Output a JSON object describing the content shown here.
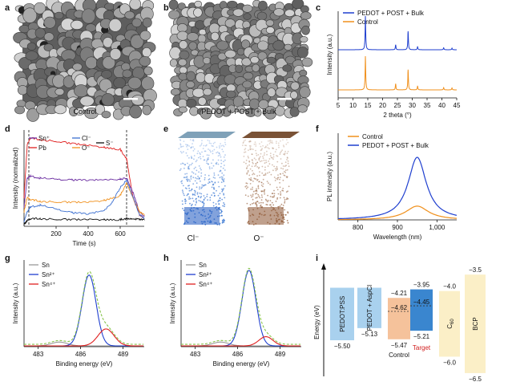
{
  "panels": {
    "a": {
      "label": "a",
      "caption": "Control"
    },
    "b": {
      "label": "b",
      "caption": "PEDOT + POST + Bulk"
    },
    "c": {
      "label": "c"
    },
    "d": {
      "label": "d"
    },
    "e": {
      "label": "e",
      "left_caption": "Cl⁻",
      "right_caption": "O⁻"
    },
    "f": {
      "label": "f"
    },
    "g": {
      "label": "g"
    },
    "h": {
      "label": "h"
    },
    "i": {
      "label": "i"
    }
  },
  "colors": {
    "blue": "#1f3fcf",
    "orange": "#f0901c",
    "purple": "#6a2ca0",
    "red": "#e02020",
    "green": "#86c34a",
    "gray": "#999999"
  },
  "chart_data": [
    {
      "panel": "c",
      "type": "line",
      "xlabel": "2 theta (°)",
      "ylabel": "Intensity (a.u.)",
      "xlim": [
        5,
        45
      ],
      "xticks": [
        5,
        10,
        15,
        20,
        25,
        30,
        35,
        40,
        45
      ],
      "series": [
        {
          "name": "PEDOT + POST + Bulk",
          "color": "#1f3fcf",
          "peaks": [
            [
              14.2,
              1.0
            ],
            [
              24.4,
              0.15
            ],
            [
              28.6,
              0.55
            ],
            [
              31.8,
              0.1
            ],
            [
              40.6,
              0.06
            ],
            [
              43.4,
              0.05
            ]
          ]
        },
        {
          "name": "Control",
          "color": "#f0901c",
          "peaks": [
            [
              14.2,
              1.0
            ],
            [
              24.4,
              0.18
            ],
            [
              28.6,
              0.6
            ],
            [
              31.8,
              0.12
            ],
            [
              40.6,
              0.07
            ],
            [
              43.4,
              0.06
            ]
          ]
        }
      ],
      "legend": "top-left"
    },
    {
      "panel": "d",
      "type": "line",
      "xlabel": "Time (s)",
      "ylabel": "Intensity (normalized)",
      "xlim": [
        0,
        750
      ],
      "xticks": [
        200,
        400,
        600
      ],
      "dashed_lines_x": [
        30,
        640
      ],
      "legend_entries": [
        "Sn⁺",
        "Pb",
        "Cl⁻",
        "O⁻",
        "S⁻"
      ],
      "series": [
        {
          "name": "Pb",
          "color": "#e02020",
          "x": [
            0,
            20,
            40,
            100,
            200,
            300,
            400,
            500,
            600,
            640,
            680,
            720,
            750
          ],
          "y": [
            0.3,
            0.85,
            0.92,
            0.9,
            0.88,
            0.86,
            0.84,
            0.82,
            0.8,
            0.7,
            0.3,
            0.12,
            0.08
          ]
        },
        {
          "name": "Sn⁺",
          "color": "#6a2ca0",
          "x": [
            0,
            20,
            40,
            100,
            200,
            300,
            400,
            500,
            600,
            640,
            680,
            720,
            750
          ],
          "y": [
            0.2,
            0.5,
            0.52,
            0.5,
            0.49,
            0.48,
            0.48,
            0.48,
            0.49,
            0.5,
            0.35,
            0.15,
            0.1
          ]
        },
        {
          "name": "O⁻",
          "color": "#f0901c",
          "x": [
            0,
            20,
            40,
            100,
            200,
            300,
            400,
            500,
            600,
            640,
            680,
            720,
            750
          ],
          "y": [
            0.15,
            0.3,
            0.28,
            0.26,
            0.25,
            0.25,
            0.25,
            0.27,
            0.32,
            0.45,
            0.3,
            0.15,
            0.12
          ]
        },
        {
          "name": "Cl⁻",
          "color": "#3b6fd0",
          "x": [
            0,
            20,
            40,
            100,
            200,
            300,
            400,
            500,
            550,
            600,
            640,
            680,
            720,
            750
          ],
          "y": [
            0.05,
            0.15,
            0.2,
            0.22,
            0.18,
            0.14,
            0.13,
            0.16,
            0.25,
            0.4,
            0.48,
            0.3,
            0.12,
            0.08
          ]
        },
        {
          "name": "S⁻",
          "color": "#111111",
          "x": [
            0,
            20,
            40,
            100,
            200,
            300,
            400,
            500,
            600,
            640,
            680,
            720,
            750
          ],
          "y": [
            0.02,
            0.06,
            0.08,
            0.08,
            0.07,
            0.07,
            0.07,
            0.07,
            0.07,
            0.08,
            0.08,
            0.07,
            0.07
          ]
        }
      ]
    },
    {
      "panel": "f",
      "type": "line",
      "xlabel": "Wavelength (nm)",
      "ylabel": "PL intensity (a.u.)",
      "xlim": [
        750,
        1050
      ],
      "xticks": [
        800,
        900,
        1000
      ],
      "xtick_labels": [
        "800",
        "900",
        "1,000"
      ],
      "series": [
        {
          "name": "Control",
          "color": "#f0901c",
          "center": 950,
          "width": 35,
          "height": 0.22
        },
        {
          "name": "PEDOT + POST + Bulk",
          "color": "#1f3fcf",
          "center": 950,
          "width": 28,
          "height": 1.0
        }
      ],
      "legend": "top"
    },
    {
      "panel": "g",
      "type": "line",
      "xlabel": "Binding energy (eV)",
      "ylabel": "Intensity (a.u.)",
      "xlim": [
        482,
        490.5
      ],
      "xticks": [
        483,
        486,
        489
      ],
      "series": [
        {
          "name": "Sn",
          "color": "#999999",
          "center": 484.5,
          "width": 0.8,
          "height": 0.05
        },
        {
          "name": "Sn²⁺",
          "color": "#1f3fcf",
          "center": 486.6,
          "width": 0.7,
          "height": 0.92
        },
        {
          "name": "Sn⁴⁺",
          "color": "#e02020",
          "center": 487.8,
          "width": 0.8,
          "height": 0.22
        },
        {
          "name": "fit",
          "color": "#86c34a",
          "dashed": true
        }
      ],
      "legend": "top-left"
    },
    {
      "panel": "h",
      "type": "line",
      "xlabel": "Binding energy (eV)",
      "ylabel": "Intensity (a.u.)",
      "xlim": [
        482,
        490.5
      ],
      "xticks": [
        483,
        486,
        489
      ],
      "series": [
        {
          "name": "Sn",
          "color": "#999999",
          "center": 484.8,
          "width": 0.8,
          "height": 0.05
        },
        {
          "name": "Sn²⁺",
          "color": "#1f3fcf",
          "center": 486.8,
          "width": 0.7,
          "height": 0.98
        },
        {
          "name": "Sn⁴⁺",
          "color": "#e02020",
          "center": 488.0,
          "width": 0.7,
          "height": 0.12
        },
        {
          "name": "fit",
          "color": "#86c34a",
          "dashed": true
        }
      ],
      "legend": "top-left"
    },
    {
      "panel": "i",
      "type": "bar",
      "ylabel": "Energy (eV)",
      "bars": [
        {
          "name": "PEDOT:PSS",
          "top": null,
          "bottom": -5.5,
          "bottom_label": "−5.50",
          "color": "#a9d1ee"
        },
        {
          "name": "PEDOT + AspCl",
          "top": null,
          "bottom": -5.13,
          "bottom_label": "−5.13",
          "color": "#a9d1ee"
        },
        {
          "name": "Control",
          "top": -4.21,
          "bottom": -5.47,
          "top_label": "−4.21",
          "bottom_label": "−5.47",
          "fermi": -4.62,
          "fermi_label": "−4.62",
          "color": "#f5c29b"
        },
        {
          "name": "Target",
          "top": -3.95,
          "bottom": -5.21,
          "top_label": "−3.95",
          "bottom_label": "−5.21",
          "fermi": -4.45,
          "fermi_label": "−4.45",
          "color": "#3a86cf"
        },
        {
          "name": "C60",
          "top": -4.0,
          "bottom": -6.0,
          "top_label": "−4.0",
          "bottom_label": "−6.0",
          "color": "#fbefc7"
        },
        {
          "name": "BCP",
          "top": -3.5,
          "bottom": -6.5,
          "top_label": "−3.5",
          "bottom_label": "−6.5",
          "color": "#fbefc7"
        }
      ],
      "group_labels": {
        "control": "Control",
        "target": "Target"
      }
    }
  ]
}
